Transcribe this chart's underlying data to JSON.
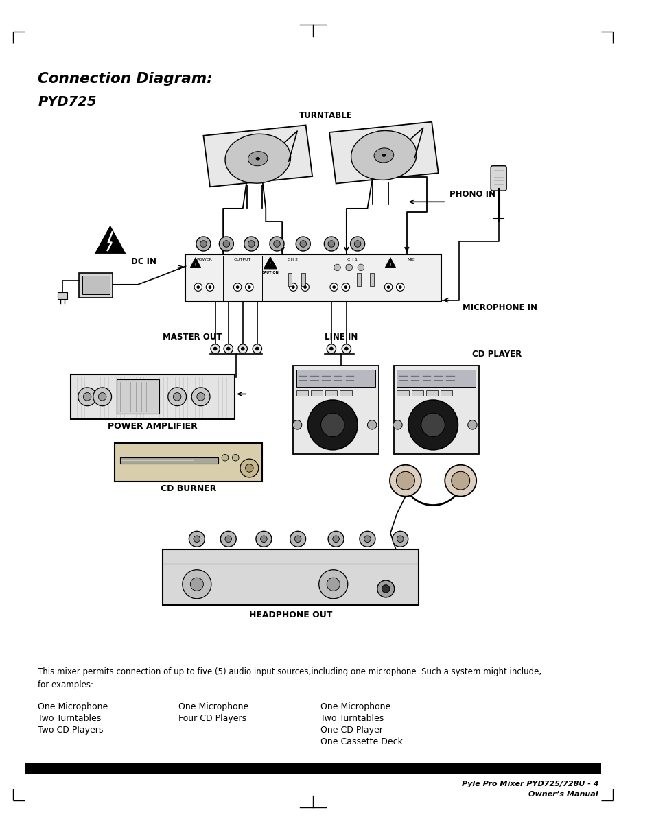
{
  "title": "Connection Diagram:",
  "subtitle": "PYD725",
  "background_color": "#ffffff",
  "text_color": "#000000",
  "page_width": 9.54,
  "page_height": 12.13,
  "body_text_line1": "This mixer permits connection of up to five (5) audio input sources,including one microphone. Such a system might include,",
  "body_text_line2": "for examples:",
  "col1_lines": [
    "One Microphone",
    "Two Turntables",
    "Two CD Players"
  ],
  "col2_lines": [
    "One Microphone",
    "Four CD Players"
  ],
  "col3_lines": [
    "One Microphone",
    "Two Turntables",
    "One CD Player",
    "One Cassette Deck"
  ],
  "footer_line1": "Pyle Pro Mixer PYD725/728U - 4",
  "footer_line2": "Owner’s Manual",
  "labels": {
    "turntable": "TURNTABLE",
    "phono_in": "PHONO IN",
    "dc_in": "DC IN",
    "master_out": "MASTER OUT",
    "line_in": "LINE IN",
    "microphone_in": "MICROPHONE IN",
    "cd_player": "CD PLAYER",
    "power_amplifier": "POWER AMPLIFIER",
    "cd_burner": "CD BURNER",
    "headphone_out": "HEADPHONE OUT"
  }
}
